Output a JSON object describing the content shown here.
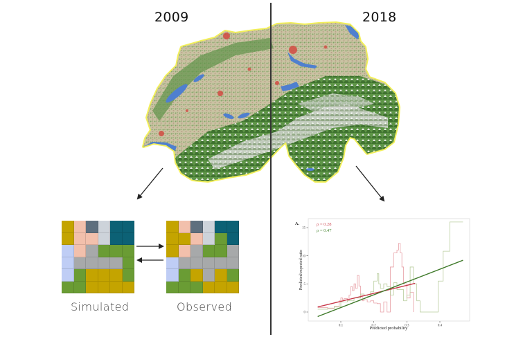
{
  "titles": {
    "left_year": "2009",
    "right_year": "2018"
  },
  "colors": {
    "Y": "#c4a400",
    "P": "#f2c0ac",
    "S": "#5e6f7e",
    "L": "#cdd3da",
    "T": "#0c6175",
    "G": "#6a9c34",
    "R": "#a7a9aa",
    "B": "#bfcdf5"
  },
  "grids": {
    "simulated": {
      "label": "Simulated",
      "cells": [
        [
          "Y",
          "P",
          "S",
          "L",
          "T",
          "T"
        ],
        [
          "Y",
          "P",
          "P",
          "L",
          "T",
          "T"
        ],
        [
          "B",
          "P",
          "R",
          "G",
          "G",
          "G"
        ],
        [
          "B",
          "R",
          "R",
          "R",
          "R",
          "G"
        ],
        [
          "B",
          "G",
          "Y",
          "Y",
          "Y",
          "G"
        ],
        [
          "G",
          "G",
          "Y",
          "Y",
          "Y",
          "Y"
        ]
      ]
    },
    "observed": {
      "label": "Observed",
      "cells": [
        [
          "Y",
          "P",
          "S",
          "L",
          "T",
          "T"
        ],
        [
          "Y",
          "Y",
          "P",
          "L",
          "G",
          "T"
        ],
        [
          "Y",
          "P",
          "R",
          "G",
          "G",
          "R"
        ],
        [
          "B",
          "R",
          "R",
          "R",
          "R",
          "R"
        ],
        [
          "B",
          "G",
          "Y",
          "R",
          "Y",
          "G"
        ],
        [
          "G",
          "G",
          "G",
          "Y",
          "Y",
          "Y"
        ]
      ]
    }
  },
  "chart_data": {
    "type": "line",
    "panel_label": "A.",
    "title": "",
    "xlabel": "Predicted probability",
    "ylabel": "Predicted/expected ratio",
    "x_ticks": [
      "0.1",
      "0.2",
      "0.3",
      "0.4"
    ],
    "y_ticks": [
      "0",
      "5",
      "10",
      "15"
    ],
    "xlim": [
      0.02,
      0.48
    ],
    "ylim": [
      -1.5,
      16
    ],
    "grid": false,
    "legend": [
      {
        "label": "ρ = 0.28",
        "color": "#d0505a"
      },
      {
        "label": "ρ = 0.47",
        "color": "#4f8a3a"
      }
    ],
    "series": [
      {
        "name": "ρ = 0.28 (fit)",
        "color": "#c8384a",
        "type": "regression",
        "x": [
          0.03,
          0.325
        ],
        "y": [
          0.9,
          5.1
        ]
      },
      {
        "name": "ρ = 0.47 (fit)",
        "color": "#3f7a2a",
        "type": "regression",
        "x": [
          0.03,
          0.47
        ],
        "y": [
          -0.8,
          9.2
        ]
      },
      {
        "name": "ρ = 0.28 (ratio)",
        "color": "#e8a0a6",
        "type": "step",
        "x": [
          0.03,
          0.06,
          0.08,
          0.095,
          0.1,
          0.105,
          0.11,
          0.12,
          0.125,
          0.13,
          0.135,
          0.14,
          0.145,
          0.15,
          0.155,
          0.16,
          0.165,
          0.17,
          0.18,
          0.19,
          0.2,
          0.21,
          0.22,
          0.23,
          0.24,
          0.25,
          0.26,
          0.27,
          0.275,
          0.28,
          0.285,
          0.29,
          0.3,
          0.31,
          0.32
        ],
        "y": [
          0.8,
          0.7,
          1.0,
          2.0,
          2.5,
          2.2,
          2.4,
          2.0,
          3.0,
          4.5,
          3.8,
          5.0,
          4.2,
          6.5,
          4.6,
          3.0,
          2.0,
          2.2,
          1.8,
          2.0,
          1.6,
          1.5,
          0.0,
          1.8,
          0.0,
          8.0,
          10.5,
          11.0,
          12.2,
          10.5,
          8.0,
          5.0,
          2.5,
          3.5,
          0.0
        ]
      },
      {
        "name": "ρ = 0.47 (ratio)",
        "color": "#b8cc9c",
        "type": "step",
        "x": [
          0.03,
          0.06,
          0.08,
          0.1,
          0.12,
          0.14,
          0.16,
          0.17,
          0.18,
          0.19,
          0.2,
          0.21,
          0.215,
          0.22,
          0.23,
          0.24,
          0.25,
          0.26,
          0.27,
          0.29,
          0.3,
          0.31,
          0.32,
          0.33,
          0.34,
          0.37,
          0.39,
          0.395,
          0.41,
          0.43,
          0.47
        ],
        "y": [
          0.5,
          0.6,
          0.9,
          1.8,
          2.0,
          2.5,
          3.2,
          3.0,
          2.8,
          3.6,
          5.5,
          6.8,
          5.0,
          4.2,
          5.0,
          4.5,
          3.0,
          5.2,
          4.0,
          2.0,
          3.0,
          8.0,
          5.0,
          2.0,
          0.0,
          0.0,
          0.0,
          5.5,
          10.8,
          16.0,
          16.0
        ]
      }
    ]
  }
}
